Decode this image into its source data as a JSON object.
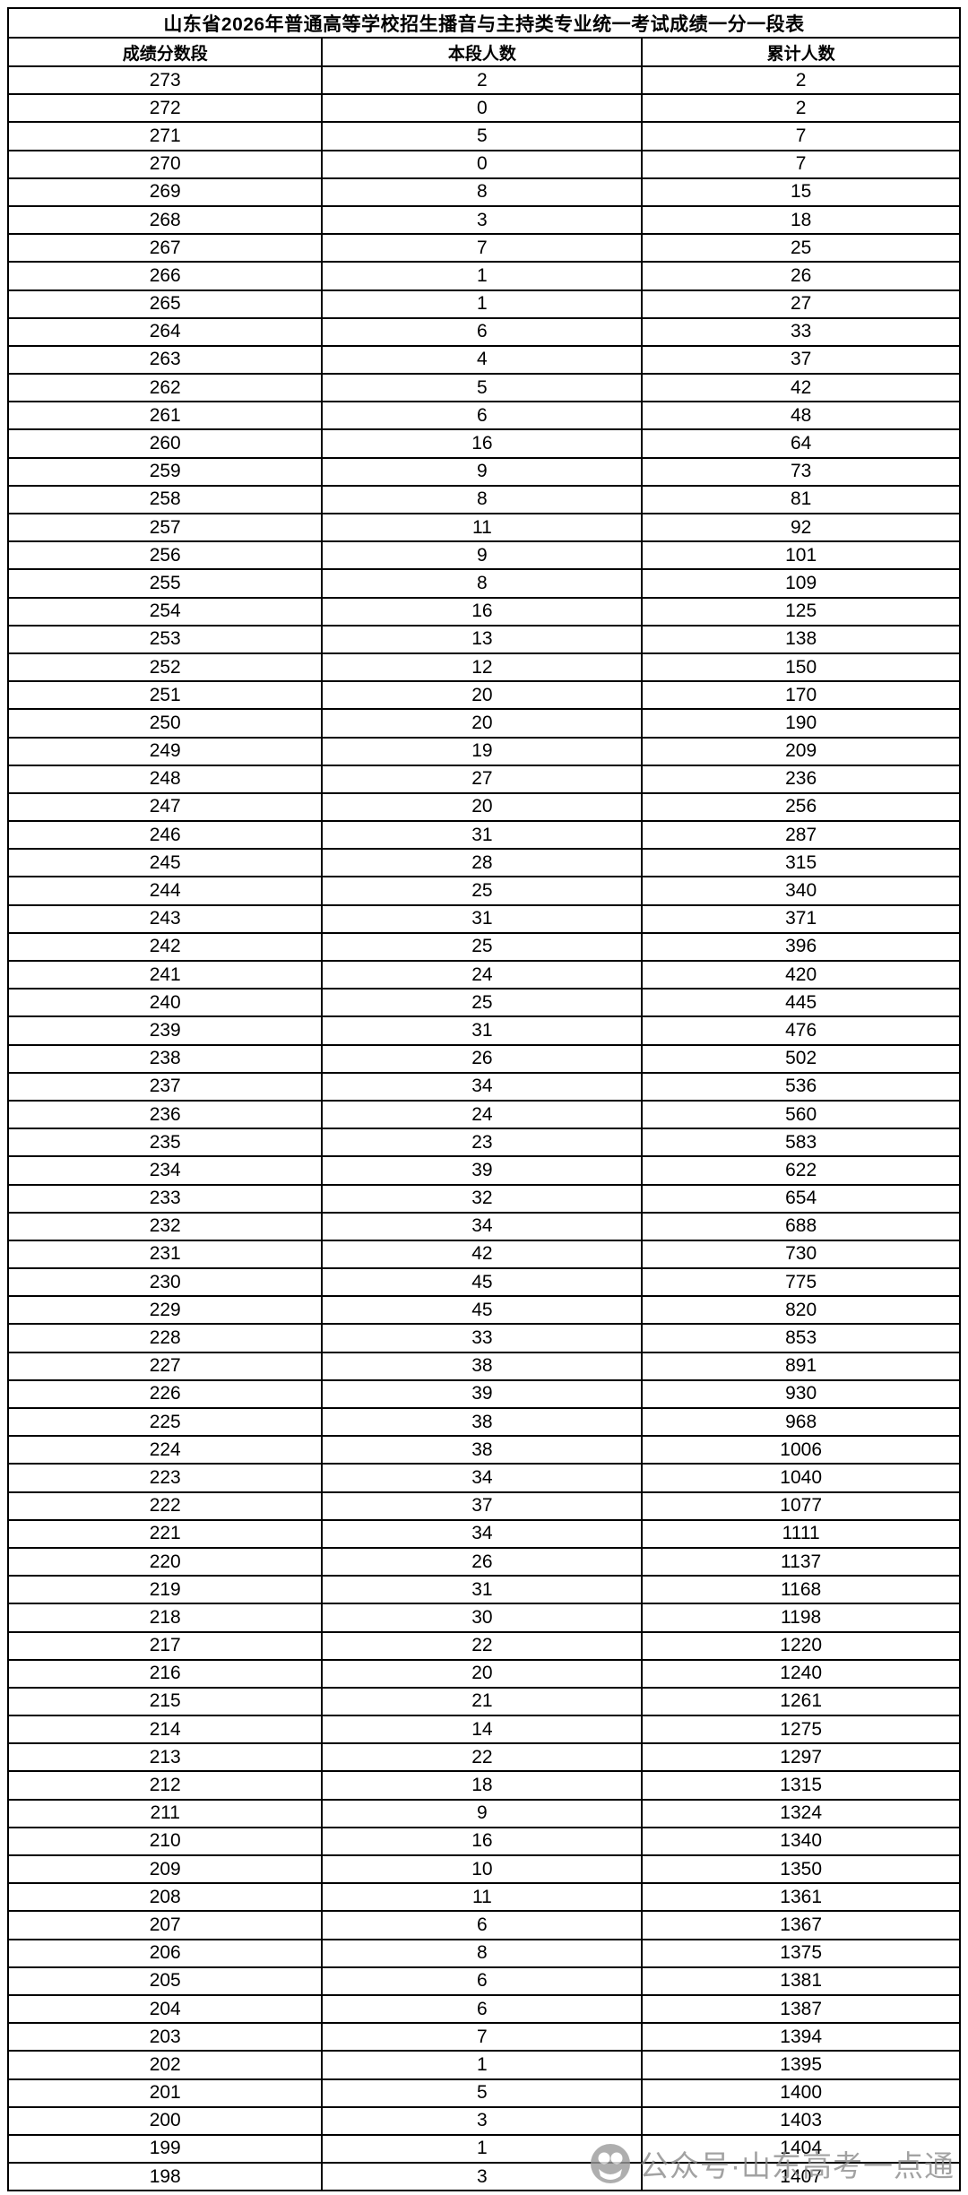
{
  "table": {
    "title": "山东省2026年普通高等学校招生播音与主持类专业统一考试成绩一分一段表",
    "columns": [
      "成绩分数段",
      "本段人数",
      "累计人数"
    ],
    "rows": [
      [
        273,
        2,
        2
      ],
      [
        272,
        0,
        2
      ],
      [
        271,
        5,
        7
      ],
      [
        270,
        0,
        7
      ],
      [
        269,
        8,
        15
      ],
      [
        268,
        3,
        18
      ],
      [
        267,
        7,
        25
      ],
      [
        266,
        1,
        26
      ],
      [
        265,
        1,
        27
      ],
      [
        264,
        6,
        33
      ],
      [
        263,
        4,
        37
      ],
      [
        262,
        5,
        42
      ],
      [
        261,
        6,
        48
      ],
      [
        260,
        16,
        64
      ],
      [
        259,
        9,
        73
      ],
      [
        258,
        8,
        81
      ],
      [
        257,
        11,
        92
      ],
      [
        256,
        9,
        101
      ],
      [
        255,
        8,
        109
      ],
      [
        254,
        16,
        125
      ],
      [
        253,
        13,
        138
      ],
      [
        252,
        12,
        150
      ],
      [
        251,
        20,
        170
      ],
      [
        250,
        20,
        190
      ],
      [
        249,
        19,
        209
      ],
      [
        248,
        27,
        236
      ],
      [
        247,
        20,
        256
      ],
      [
        246,
        31,
        287
      ],
      [
        245,
        28,
        315
      ],
      [
        244,
        25,
        340
      ],
      [
        243,
        31,
        371
      ],
      [
        242,
        25,
        396
      ],
      [
        241,
        24,
        420
      ],
      [
        240,
        25,
        445
      ],
      [
        239,
        31,
        476
      ],
      [
        238,
        26,
        502
      ],
      [
        237,
        34,
        536
      ],
      [
        236,
        24,
        560
      ],
      [
        235,
        23,
        583
      ],
      [
        234,
        39,
        622
      ],
      [
        233,
        32,
        654
      ],
      [
        232,
        34,
        688
      ],
      [
        231,
        42,
        730
      ],
      [
        230,
        45,
        775
      ],
      [
        229,
        45,
        820
      ],
      [
        228,
        33,
        853
      ],
      [
        227,
        38,
        891
      ],
      [
        226,
        39,
        930
      ],
      [
        225,
        38,
        968
      ],
      [
        224,
        38,
        1006
      ],
      [
        223,
        34,
        1040
      ],
      [
        222,
        37,
        1077
      ],
      [
        221,
        34,
        1111
      ],
      [
        220,
        26,
        1137
      ],
      [
        219,
        31,
        1168
      ],
      [
        218,
        30,
        1198
      ],
      [
        217,
        22,
        1220
      ],
      [
        216,
        20,
        1240
      ],
      [
        215,
        21,
        1261
      ],
      [
        214,
        14,
        1275
      ],
      [
        213,
        22,
        1297
      ],
      [
        212,
        18,
        1315
      ],
      [
        211,
        9,
        1324
      ],
      [
        210,
        16,
        1340
      ],
      [
        209,
        10,
        1350
      ],
      [
        208,
        11,
        1361
      ],
      [
        207,
        6,
        1367
      ],
      [
        206,
        8,
        1375
      ],
      [
        205,
        6,
        1381
      ],
      [
        204,
        6,
        1387
      ],
      [
        203,
        7,
        1394
      ],
      [
        202,
        1,
        1395
      ],
      [
        201,
        5,
        1400
      ],
      [
        200,
        3,
        1403
      ],
      [
        199,
        1,
        1404
      ],
      [
        198,
        3,
        1407
      ]
    ]
  },
  "watermark": {
    "icon": "wechat-official-account-logo",
    "text": "公众号·山东高考一点通",
    "color": "#8c8c8c"
  },
  "colors": {
    "border": "#000000",
    "text": "#000000",
    "background": "#ffffff"
  }
}
